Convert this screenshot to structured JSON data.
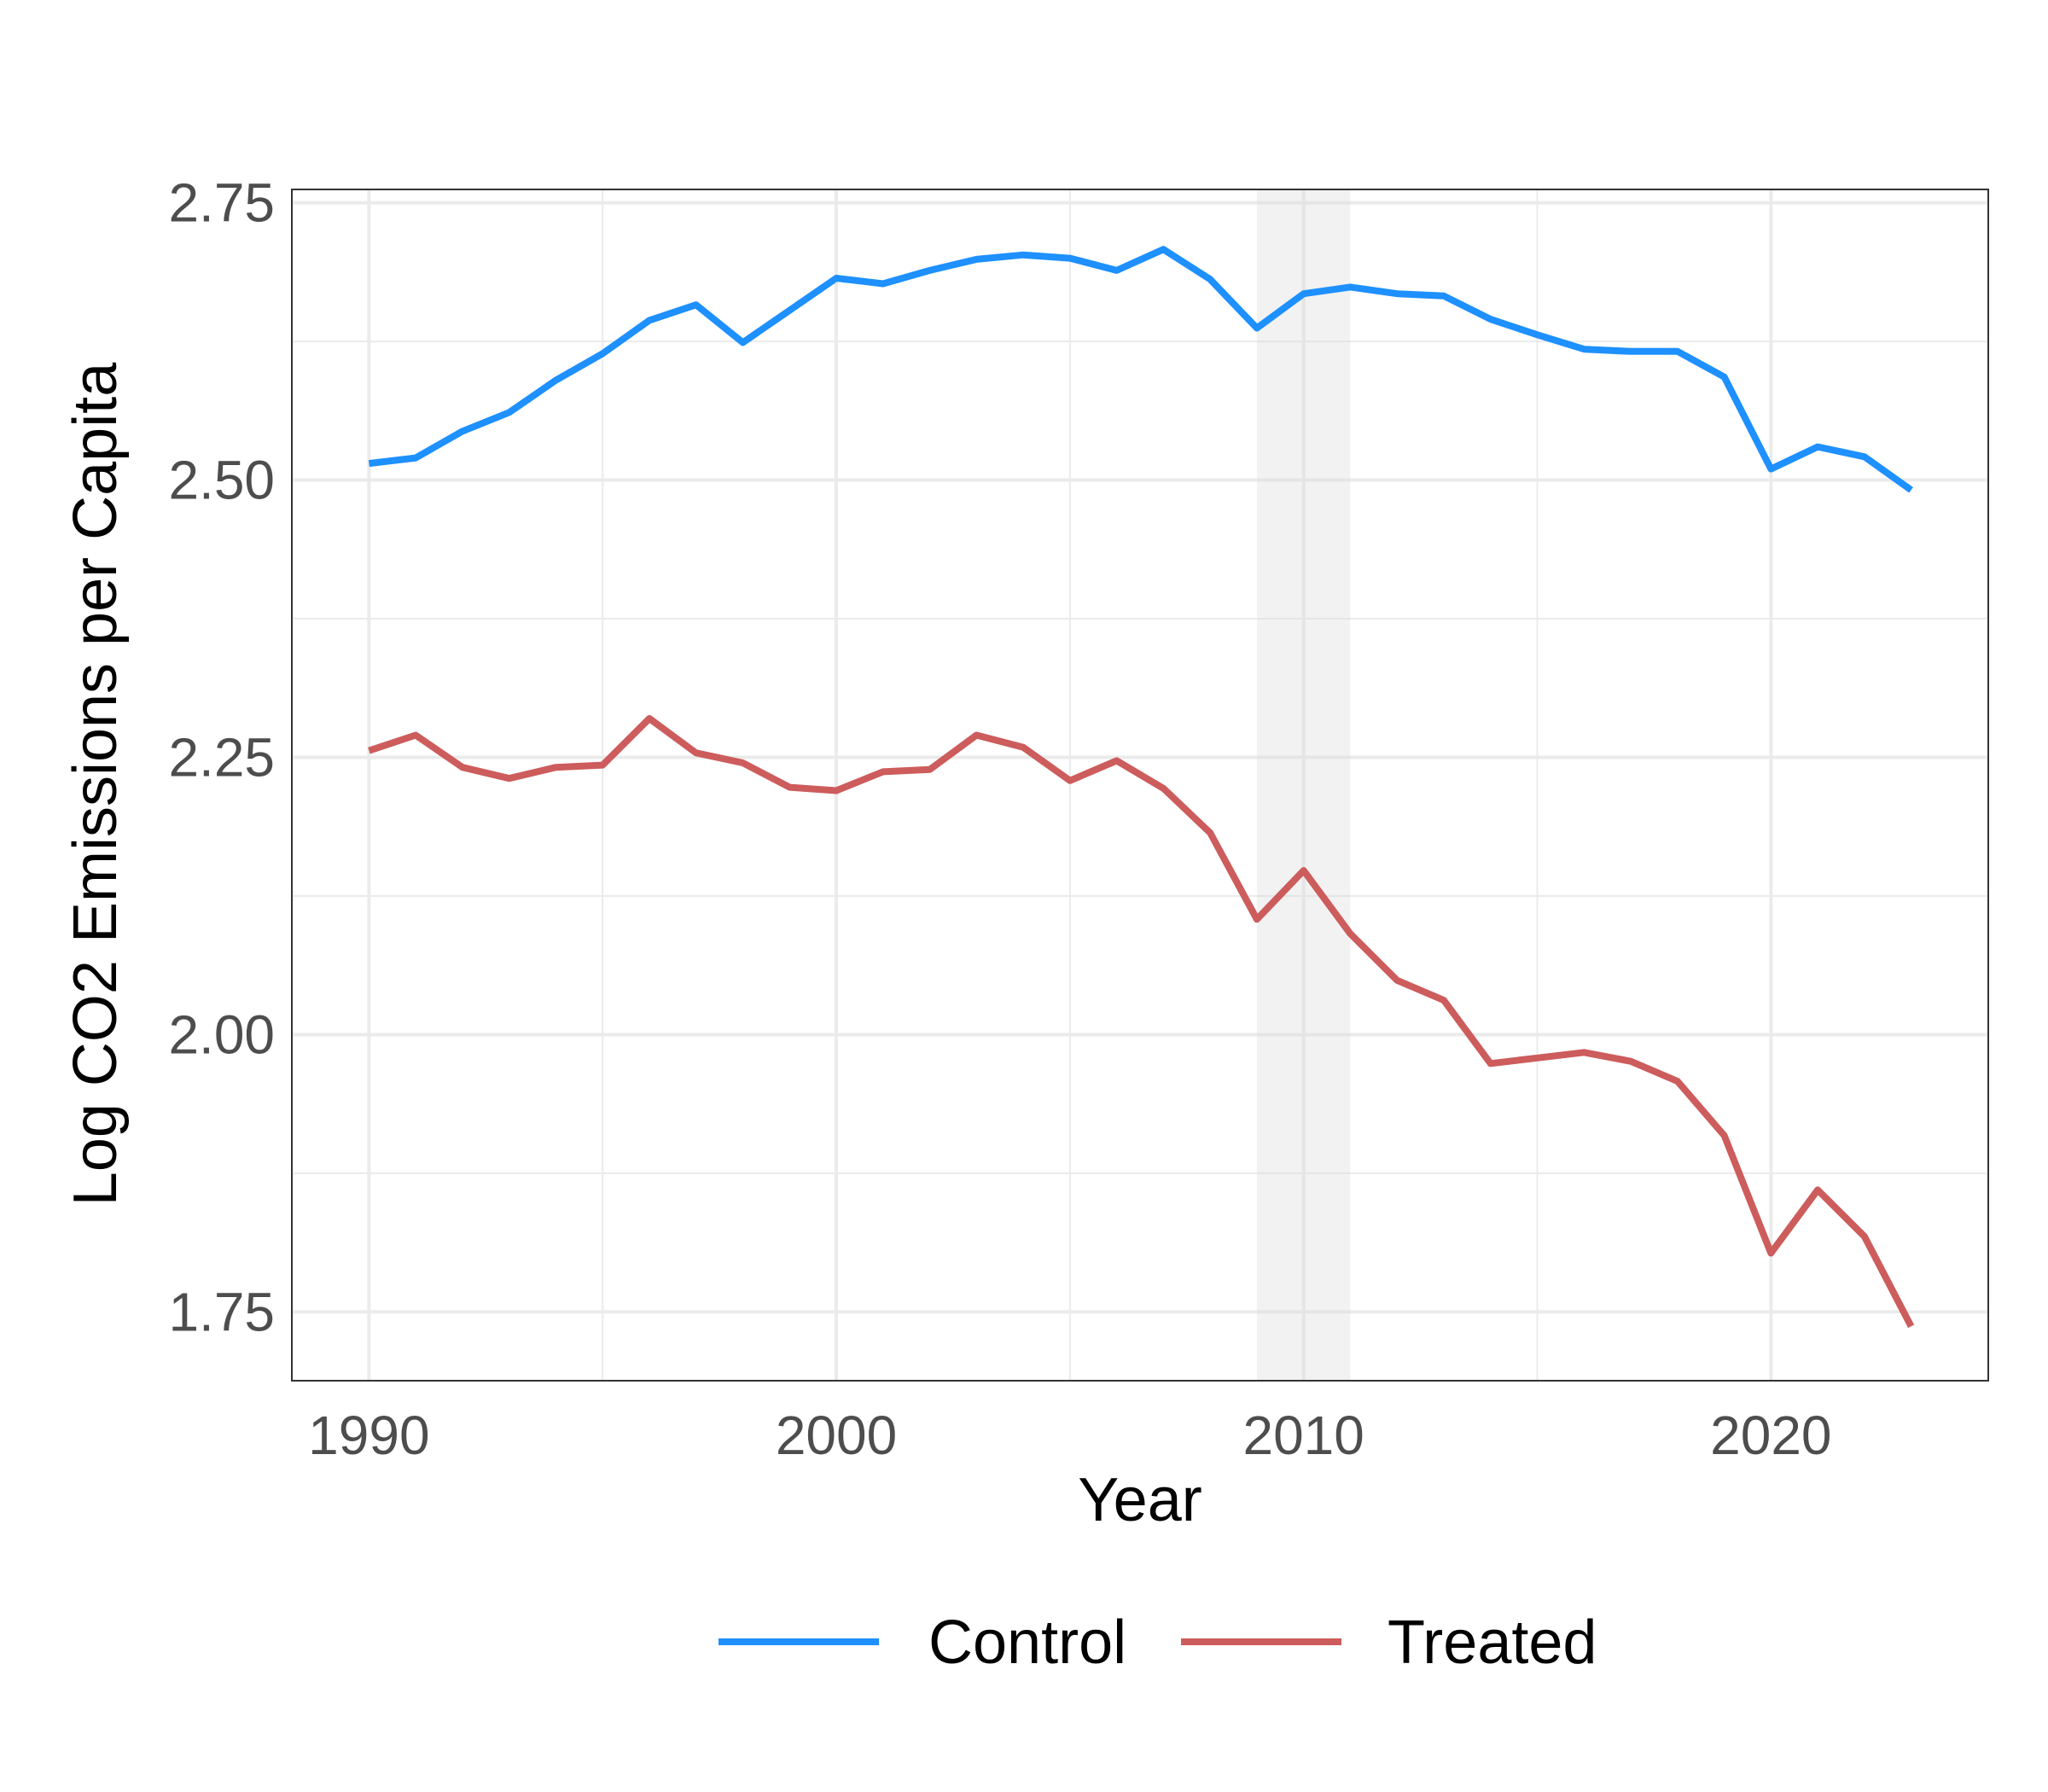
{
  "chart_data": {
    "type": "line",
    "title": "",
    "xlabel": "Year",
    "ylabel": "Log CO2 Emissions per Capita",
    "xlim": [
      1988.35,
      2024.65
    ],
    "ylim": [
      1.688,
      2.762
    ],
    "x_ticks": [
      1990,
      2000,
      2010,
      2020
    ],
    "x_tick_labels": [
      "1990",
      "2000",
      "2010",
      "2020"
    ],
    "x_minor_ticks": [
      1995,
      2005,
      2015
    ],
    "y_ticks": [
      1.75,
      2.0,
      2.25,
      2.5,
      2.75
    ],
    "y_tick_labels": [
      "1.75",
      "2.00",
      "2.25",
      "2.50",
      "2.75"
    ],
    "y_minor_ticks": [
      1.875,
      2.125,
      2.375,
      2.625
    ],
    "grid": true,
    "shaded_region": {
      "x": [
        2009,
        2011
      ],
      "color": "#d9d9d9"
    },
    "legend_position": "bottom",
    "x": [
      1990,
      1991,
      1992,
      1993,
      1994,
      1995,
      1996,
      1997,
      1998,
      1999,
      2000,
      2001,
      2002,
      2003,
      2004,
      2005,
      2006,
      2007,
      2008,
      2009,
      2010,
      2011,
      2012,
      2013,
      2014,
      2015,
      2016,
      2017,
      2018,
      2019,
      2020,
      2021,
      2022,
      2023
    ],
    "series": [
      {
        "name": "Control",
        "color": "#1E90FF",
        "values": [
          2.515,
          2.52,
          2.544,
          2.561,
          2.59,
          2.614,
          2.644,
          2.658,
          2.624,
          2.653,
          2.682,
          2.677,
          2.689,
          2.699,
          2.703,
          2.7,
          2.689,
          2.708,
          2.681,
          2.637,
          2.668,
          2.674,
          2.668,
          2.666,
          2.645,
          2.631,
          2.618,
          2.616,
          2.616,
          2.593,
          2.51,
          2.53,
          2.521,
          2.491
        ]
      },
      {
        "name": "Treated",
        "color": "#CD5C5C",
        "values": [
          2.256,
          2.27,
          2.241,
          2.231,
          2.241,
          2.243,
          2.285,
          2.254,
          2.245,
          2.223,
          2.22,
          2.237,
          2.239,
          2.27,
          2.259,
          2.229,
          2.247,
          2.222,
          2.182,
          2.104,
          2.148,
          2.091,
          2.049,
          2.031,
          1.974,
          1.979,
          1.984,
          1.976,
          1.958,
          1.909,
          1.803,
          1.86,
          1.818,
          1.737
        ]
      }
    ]
  }
}
